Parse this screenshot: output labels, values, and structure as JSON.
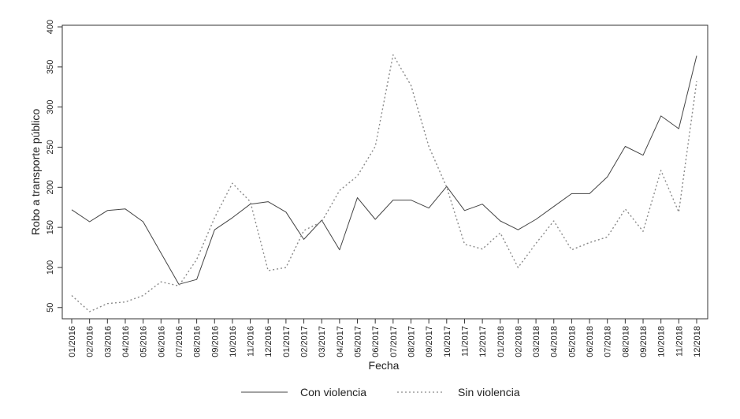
{
  "chart_data": {
    "type": "line",
    "title": "",
    "xlabel": "Fecha",
    "ylabel": "Robo a transporte público",
    "categories": [
      "01/2016",
      "02/2016",
      "03/2016",
      "04/2016",
      "05/2016",
      "06/2016",
      "07/2016",
      "08/2016",
      "09/2016",
      "10/2016",
      "11/2016",
      "12/2016",
      "01/2017",
      "02/2017",
      "03/2017",
      "04/2017",
      "05/2017",
      "06/2017",
      "07/2017",
      "08/2017",
      "09/2017",
      "10/2017",
      "11/2017",
      "12/2017",
      "01/2018",
      "02/2018",
      "03/2018",
      "04/2018",
      "05/2018",
      "06/2018",
      "07/2018",
      "08/2018",
      "09/2018",
      "10/2018",
      "11/2018",
      "12/2018"
    ],
    "yticks": [
      50,
      100,
      150,
      200,
      250,
      300,
      350,
      400
    ],
    "ylim": [
      36,
      402
    ],
    "grid": false,
    "legend_position": "bottom",
    "series": [
      {
        "name": "Con violencia",
        "style": "solid",
        "color": "#444444",
        "values": [
          172,
          157,
          171,
          173,
          157,
          118,
          79,
          85,
          147,
          162,
          179,
          182,
          169,
          135,
          159,
          122,
          187,
          160,
          184,
          184,
          174,
          201,
          171,
          179,
          158,
          147,
          160,
          176,
          192,
          192,
          213,
          251,
          240,
          289,
          273,
          364
        ]
      },
      {
        "name": "Sin violencia",
        "style": "dotted",
        "color": "#8a8a8a",
        "values": [
          65,
          45,
          55,
          57,
          65,
          82,
          77,
          110,
          162,
          205,
          182,
          96,
          100,
          146,
          157,
          196,
          214,
          251,
          365,
          327,
          251,
          200,
          129,
          123,
          143,
          100,
          130,
          158,
          122,
          131,
          138,
          173,
          145,
          221,
          169,
          332
        ]
      }
    ]
  }
}
